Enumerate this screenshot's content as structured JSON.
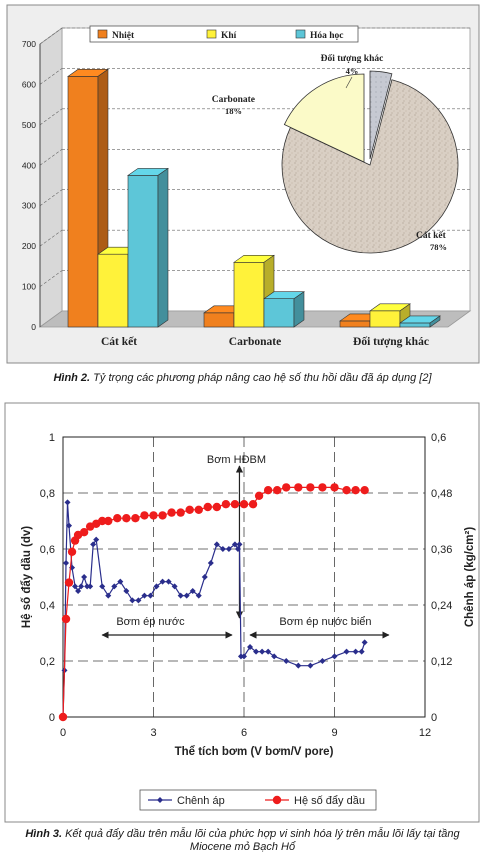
{
  "figure2": {
    "caption_label": "Hình 2.",
    "caption_text": "Tỷ trọng các phương pháp nâng cao hệ số thu hồi dầu đã áp dụng [2]"
  },
  "figure3": {
    "caption_label": "Hình 3.",
    "caption_line1": "Kết quả đẩy dầu trên mẫu lõi của phức hợp vi sinh hóa lý trên mẫu lõi lấy tại tầng",
    "caption_line2": "Miocene mỏ Bạch Hổ"
  },
  "chart_data": [
    {
      "type": "bar",
      "title": "",
      "categories": [
        "Cát kết",
        "Carbonate",
        "Đối tượng khác"
      ],
      "series": [
        {
          "name": "Nhiệt",
          "color": "#f0801e",
          "values": [
            620,
            35,
            15
          ]
        },
        {
          "name": "Khí",
          "color": "#fff23a",
          "values": [
            180,
            160,
            40
          ]
        },
        {
          "name": "Hóa học",
          "color": "#5dc6d8",
          "values": [
            375,
            70,
            10
          ]
        }
      ],
      "ylim": [
        0,
        700
      ],
      "yticks": [
        "0",
        "100",
        "200",
        "300",
        "400",
        "500",
        "600",
        "700"
      ],
      "grid": true,
      "legend": "top-left",
      "inset_pie": {
        "type": "pie",
        "slices": [
          {
            "label": "Cát kết",
            "pct_label": "78%",
            "value": 78,
            "color": "#d8ccc0"
          },
          {
            "label": "Carbonate",
            "pct_label": "18%",
            "value": 18,
            "color": "#fbfac8"
          },
          {
            "label": "Đối tượng khác",
            "pct_label": "4%",
            "value": 4,
            "color": "#c8cbd3"
          }
        ]
      }
    },
    {
      "type": "line",
      "title": "",
      "xlabel": "Thể tích bơm (V bơm/V pore)",
      "ylabel_left": "Hệ số đẩy dầu (dv)",
      "ylabel_right": "Chênh áp (kg/cm²)",
      "xlim": [
        0,
        12
      ],
      "xticks": [
        "0",
        "3",
        "6",
        "9",
        "12"
      ],
      "ylim_left": [
        0,
        1
      ],
      "yticks_left": [
        "0",
        "0,2",
        "0,4",
        "0,6",
        "0,8",
        "1"
      ],
      "ylim_right": [
        0,
        0.6
      ],
      "yticks_right": [
        "0",
        "0,12",
        "0,24",
        "0,36",
        "0,48",
        "0,6"
      ],
      "grid": true,
      "legend": "bottom",
      "annotations": {
        "pump_hdbm": "Bơm HĐBM",
        "pump_water": "Bơm ép nước",
        "pump_seawater": "Bơm ép nước biển"
      },
      "series": [
        {
          "name": "Chênh áp",
          "axis": "right",
          "color": "#2a2e8c",
          "x": [
            0,
            0.05,
            0.1,
            0.15,
            0.2,
            0.3,
            0.4,
            0.5,
            0.6,
            0.7,
            0.8,
            0.9,
            1.0,
            1.1,
            1.3,
            1.5,
            1.7,
            1.9,
            2.1,
            2.3,
            2.5,
            2.7,
            2.9,
            3.1,
            3.3,
            3.5,
            3.7,
            3.9,
            4.1,
            4.3,
            4.5,
            4.7,
            4.9,
            5.1,
            5.3,
            5.5,
            5.7,
            5.8,
            5.85,
            5.9,
            6.0,
            6.2,
            6.4,
            6.6,
            6.8,
            7.0,
            7.4,
            7.8,
            8.2,
            8.6,
            9.0,
            9.4,
            9.7,
            9.9,
            10.0
          ],
          "y": [
            0.0,
            0.1,
            0.33,
            0.46,
            0.41,
            0.32,
            0.28,
            0.27,
            0.28,
            0.3,
            0.28,
            0.28,
            0.37,
            0.38,
            0.28,
            0.26,
            0.28,
            0.29,
            0.27,
            0.25,
            0.25,
            0.26,
            0.26,
            0.28,
            0.29,
            0.29,
            0.28,
            0.26,
            0.26,
            0.27,
            0.26,
            0.3,
            0.33,
            0.37,
            0.36,
            0.36,
            0.37,
            0.36,
            0.37,
            0.13,
            0.13,
            0.15,
            0.14,
            0.14,
            0.14,
            0.13,
            0.12,
            0.11,
            0.11,
            0.12,
            0.13,
            0.14,
            0.14,
            0.14,
            0.16
          ]
        },
        {
          "name": "Hệ số đẩy dầu",
          "axis": "left",
          "color": "#ee1c1c",
          "x": [
            0,
            0.1,
            0.2,
            0.3,
            0.4,
            0.5,
            0.7,
            0.9,
            1.1,
            1.3,
            1.5,
            1.8,
            2.1,
            2.4,
            2.7,
            3.0,
            3.3,
            3.6,
            3.9,
            4.2,
            4.5,
            4.8,
            5.1,
            5.4,
            5.7,
            6.0,
            6.3,
            6.5,
            6.8,
            7.1,
            7.4,
            7.8,
            8.2,
            8.6,
            9.0,
            9.4,
            9.7,
            10.0
          ],
          "y": [
            0.0,
            0.35,
            0.48,
            0.59,
            0.63,
            0.65,
            0.66,
            0.68,
            0.69,
            0.7,
            0.7,
            0.71,
            0.71,
            0.71,
            0.72,
            0.72,
            0.72,
            0.73,
            0.73,
            0.74,
            0.74,
            0.75,
            0.75,
            0.76,
            0.76,
            0.76,
            0.76,
            0.79,
            0.81,
            0.81,
            0.82,
            0.82,
            0.82,
            0.82,
            0.82,
            0.81,
            0.81,
            0.81
          ]
        }
      ]
    }
  ]
}
